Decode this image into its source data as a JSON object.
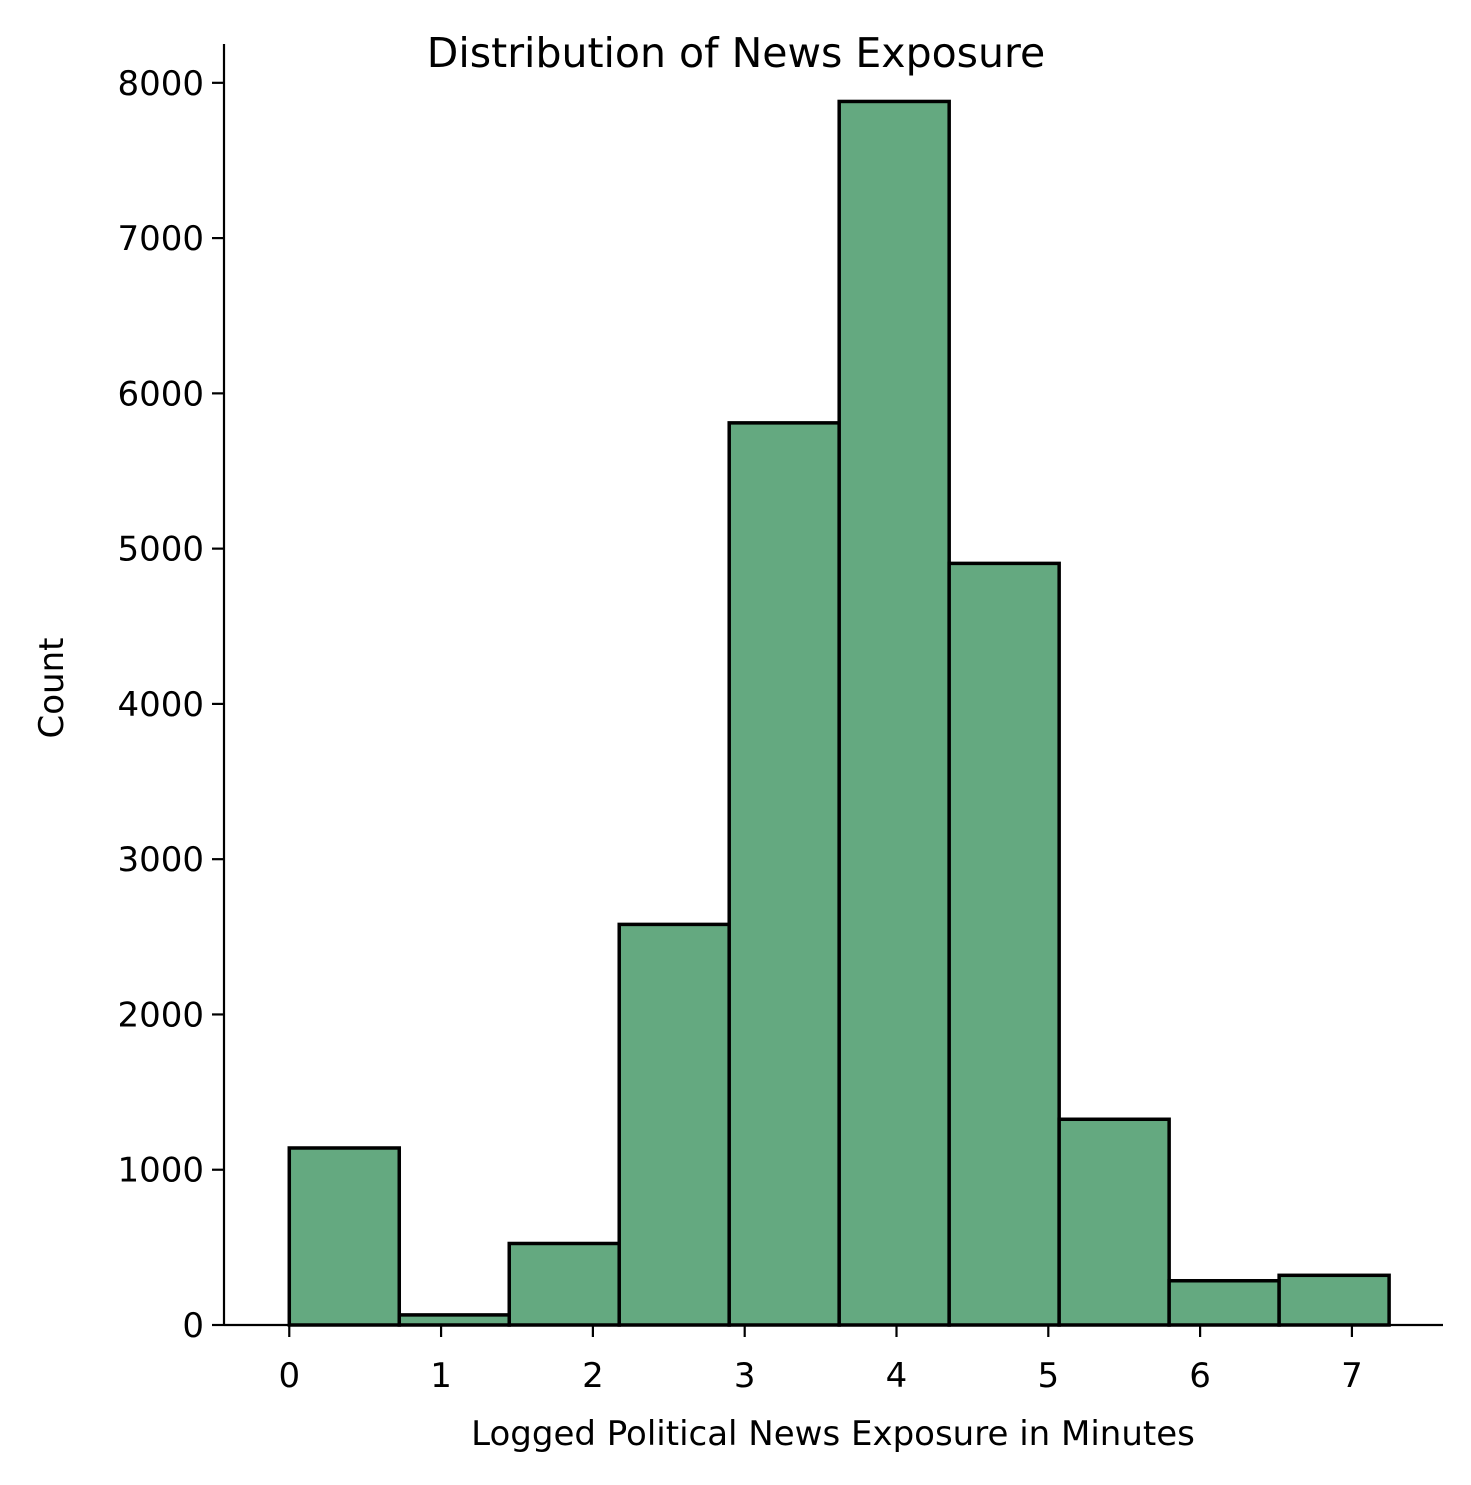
{
  "chart_data": {
    "type": "bar",
    "title": "Distribution of News Exposure",
    "xlabel": "Logged Political News Exposure in Minutes",
    "ylabel": "Count",
    "bin_edges": [
      0,
      0.7245,
      1.449,
      2.1735,
      2.898,
      3.6225,
      4.347,
      5.0715,
      5.796,
      6.5205,
      7.245
    ],
    "values": [
      1140,
      65,
      525,
      2580,
      5810,
      7880,
      4905,
      1325,
      285,
      320
    ],
    "xlim": [
      -0.43,
      7.6
    ],
    "ylim": [
      0,
      8250
    ],
    "x_ticks": [
      0,
      1,
      2,
      3,
      4,
      5,
      6,
      7
    ],
    "x_tick_labels": [
      "0",
      "1",
      "2",
      "3",
      "4",
      "5",
      "6",
      "7"
    ],
    "y_ticks": [
      0,
      1000,
      2000,
      3000,
      4000,
      5000,
      6000,
      7000,
      8000
    ],
    "y_tick_labels": [
      "0",
      "1000",
      "2000",
      "3000",
      "4000",
      "5000",
      "6000",
      "7000",
      "8000"
    ],
    "bar_color": "#64a980",
    "edge_color": "#000000",
    "grid": false,
    "legend": "none"
  }
}
